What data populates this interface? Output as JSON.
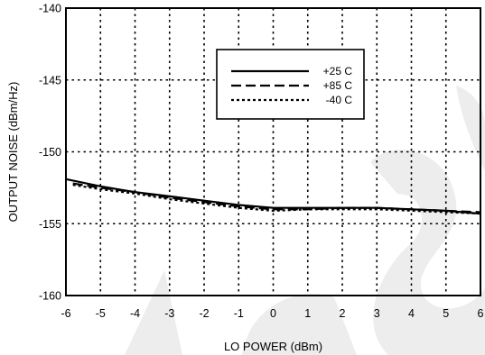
{
  "chart_data": {
    "type": "line",
    "title": "",
    "xlabel": "LO POWER (dBm)",
    "ylabel": "OUTPUT NOISE (dBm/Hz)",
    "xlim": [
      -6,
      6
    ],
    "ylim": [
      -160,
      -140
    ],
    "xticks": [
      -6,
      -5,
      -4,
      -3,
      -2,
      -1,
      0,
      1,
      2,
      3,
      4,
      5,
      6
    ],
    "yticks": [
      -140,
      -145,
      -150,
      -155,
      -160
    ],
    "grid": true,
    "legend_position": "top-right",
    "series": [
      {
        "name": "+25 C",
        "style": "solid",
        "x": [
          -6,
          -5,
          -4,
          -3,
          -2,
          -1,
          0,
          1,
          2,
          3,
          4,
          5,
          6
        ],
        "y": [
          -151.9,
          -152.4,
          -152.8,
          -153.1,
          -153.4,
          -153.7,
          -153.9,
          -153.9,
          -153.9,
          -153.9,
          -154.0,
          -154.1,
          -154.3
        ]
      },
      {
        "name": "+85 C",
        "style": "dashed",
        "x": [
          -5.8,
          -5,
          -4,
          -3,
          -2,
          -1,
          0,
          1,
          2,
          3,
          4,
          5,
          6
        ],
        "y": [
          -152.2,
          -152.5,
          -152.8,
          -153.2,
          -153.5,
          -153.8,
          -154.0,
          -154.0,
          -153.9,
          -153.9,
          -154.0,
          -154.1,
          -154.2
        ]
      },
      {
        "name": "-40 C",
        "style": "dotted",
        "x": [
          -5.8,
          -5,
          -4,
          -3,
          -2,
          -1,
          0,
          1,
          2,
          3,
          4,
          5,
          6
        ],
        "y": [
          -152.3,
          -152.6,
          -152.9,
          -153.3,
          -153.6,
          -153.9,
          -154.1,
          -154.0,
          -154.0,
          -154.0,
          -154.1,
          -154.2,
          -154.3
        ]
      }
    ]
  }
}
